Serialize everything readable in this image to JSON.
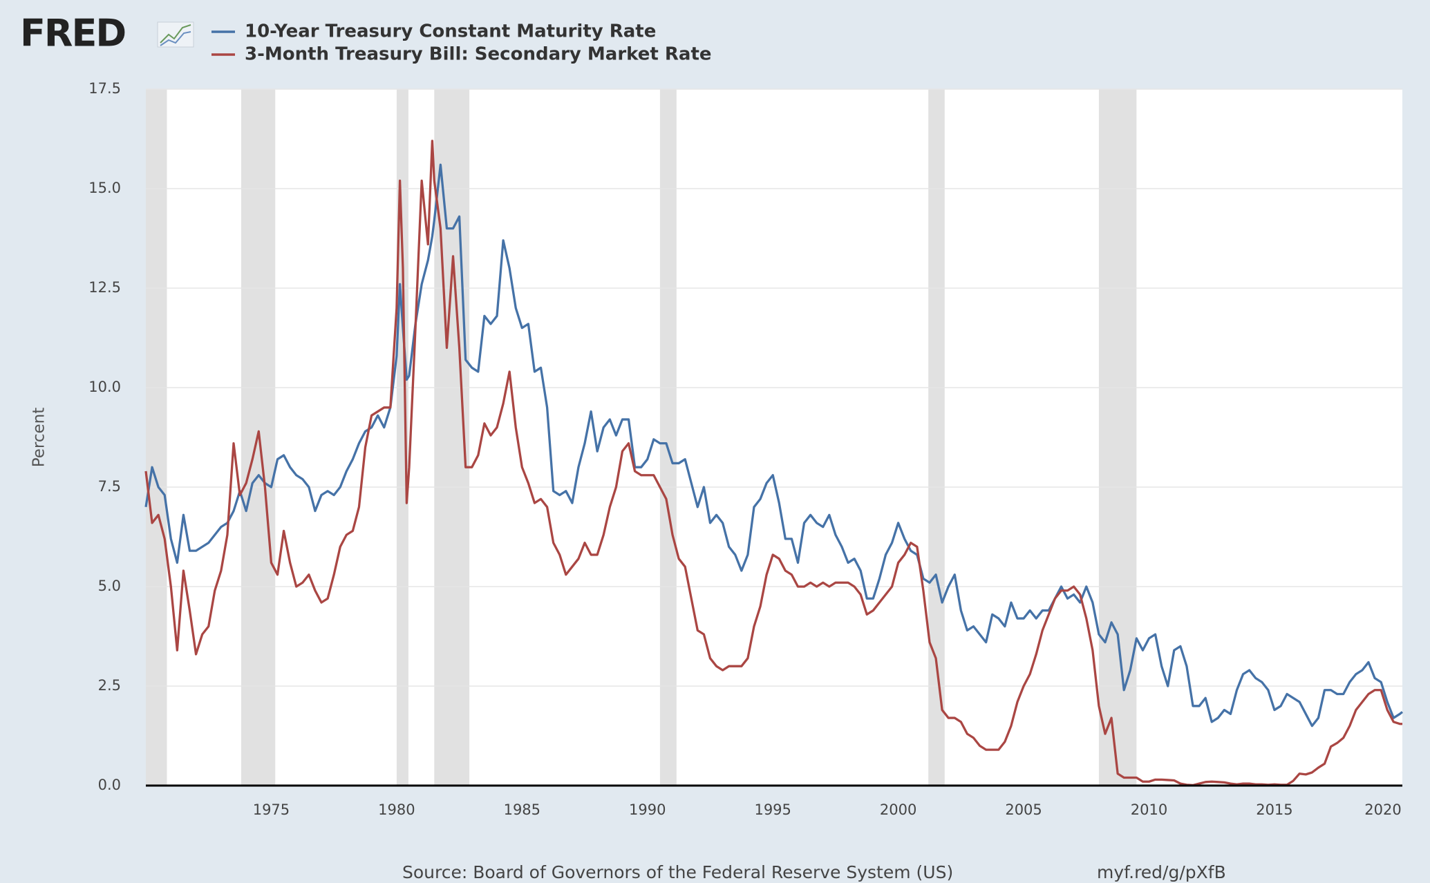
{
  "logo": "FRED",
  "source": "Source: Board of Governors of the Federal Reserve System (US)",
  "link": "myf.red/g/pXfB",
  "chart_data": {
    "type": "line",
    "ylabel": "Percent",
    "xlim": [
      1970,
      2020.1
    ],
    "xticks": [
      1975,
      1980,
      1985,
      1990,
      1995,
      2000,
      2005,
      2010,
      2015,
      2020
    ],
    "ylim": [
      0,
      17.5
    ],
    "yticks": [
      {
        "value": 0,
        "label": "0.0"
      },
      2.5,
      {
        "value": 5,
        "label": "5.0"
      },
      7.5,
      {
        "value": 10,
        "label": "10.0"
      },
      12.5,
      {
        "value": 15,
        "label": "15.0"
      },
      17.5
    ],
    "grid": true,
    "recession_color": "#e1e1e1",
    "recessions": [
      [
        1970,
        1970.84
      ],
      [
        1973.8,
        1975.16
      ],
      [
        1980,
        1980.47
      ],
      [
        1981.5,
        1982.9
      ],
      [
        1990.5,
        1991.16
      ],
      [
        2001.2,
        2001.85
      ],
      [
        2008,
        2009.5
      ]
    ],
    "x": [
      1970,
      1970.25,
      1970.5,
      1970.75,
      1971,
      1971.25,
      1971.5,
      1971.75,
      1972,
      1972.25,
      1972.5,
      1972.75,
      1973,
      1973.25,
      1973.5,
      1973.75,
      1974,
      1974.25,
      1974.5,
      1974.75,
      1975,
      1975.25,
      1975.5,
      1975.75,
      1976,
      1976.25,
      1976.5,
      1976.75,
      1977,
      1977.25,
      1977.5,
      1977.75,
      1978,
      1978.25,
      1978.5,
      1978.75,
      1979,
      1979.25,
      1979.5,
      1979.75,
      1980,
      1980.13,
      1980.25,
      1980.4,
      1980.5,
      1980.75,
      1981,
      1981.25,
      1981.42,
      1981.5,
      1981.75,
      1982,
      1982.25,
      1982.5,
      1982.75,
      1983,
      1983.25,
      1983.5,
      1983.75,
      1984,
      1984.25,
      1984.5,
      1984.75,
      1985,
      1985.25,
      1985.5,
      1985.75,
      1986,
      1986.25,
      1986.5,
      1986.75,
      1987,
      1987.25,
      1987.5,
      1987.75,
      1988,
      1988.25,
      1988.5,
      1988.75,
      1989,
      1989.25,
      1989.5,
      1989.75,
      1990,
      1990.25,
      1990.5,
      1990.75,
      1991,
      1991.25,
      1991.5,
      1991.75,
      1992,
      1992.25,
      1992.5,
      1992.75,
      1993,
      1993.25,
      1993.5,
      1993.75,
      1994,
      1994.25,
      1994.5,
      1994.75,
      1995,
      1995.25,
      1995.5,
      1995.75,
      1996,
      1996.25,
      1996.5,
      1996.75,
      1997,
      1997.25,
      1997.5,
      1997.75,
      1998,
      1998.25,
      1998.5,
      1998.75,
      1999,
      1999.25,
      1999.5,
      1999.75,
      2000,
      2000.25,
      2000.5,
      2000.75,
      2001,
      2001.25,
      2001.5,
      2001.75,
      2002,
      2002.25,
      2002.5,
      2002.75,
      2003,
      2003.25,
      2003.5,
      2003.75,
      2004,
      2004.25,
      2004.5,
      2004.75,
      2005,
      2005.25,
      2005.5,
      2005.75,
      2006,
      2006.25,
      2006.5,
      2006.75,
      2007,
      2007.25,
      2007.5,
      2007.75,
      2008,
      2008.25,
      2008.5,
      2008.75,
      2009,
      2009.25,
      2009.5,
      2009.75,
      2010,
      2010.25,
      2010.5,
      2010.75,
      2011,
      2011.25,
      2011.5,
      2011.75,
      2012,
      2012.25,
      2012.5,
      2012.75,
      2013,
      2013.25,
      2013.5,
      2013.75,
      2014,
      2014.25,
      2014.5,
      2014.75,
      2015,
      2015.25,
      2015.5,
      2015.75,
      2016,
      2016.25,
      2016.5,
      2016.75,
      2017,
      2017.25,
      2017.5,
      2017.75,
      2018,
      2018.25,
      2018.5,
      2018.75,
      2019,
      2019.25,
      2019.5,
      2019.75,
      2020,
      2020.1
    ],
    "series": [
      {
        "name": "10-Year Treasury Constant Maturity Rate",
        "color": "#4572a7",
        "values": [
          7.0,
          8.0,
          7.5,
          7.3,
          6.2,
          5.6,
          6.8,
          5.9,
          5.9,
          6.0,
          6.1,
          6.3,
          6.5,
          6.6,
          6.9,
          7.4,
          6.9,
          7.6,
          7.8,
          7.6,
          7.5,
          8.2,
          8.3,
          8.0,
          7.8,
          7.7,
          7.5,
          6.9,
          7.3,
          7.4,
          7.3,
          7.5,
          7.9,
          8.2,
          8.6,
          8.9,
          9.0,
          9.3,
          9.0,
          9.5,
          10.8,
          12.6,
          11.5,
          10.2,
          10.3,
          11.6,
          12.6,
          13.2,
          13.8,
          14.2,
          15.6,
          14.0,
          14.0,
          14.3,
          10.7,
          10.5,
          10.4,
          11.8,
          11.6,
          11.8,
          13.7,
          13.0,
          12.0,
          11.5,
          11.6,
          10.4,
          10.5,
          9.5,
          7.4,
          7.3,
          7.4,
          7.1,
          8.0,
          8.6,
          9.4,
          8.4,
          9.0,
          9.2,
          8.8,
          9.2,
          9.2,
          8.0,
          8.0,
          8.2,
          8.7,
          8.6,
          8.6,
          8.1,
          8.1,
          8.2,
          7.6,
          7.0,
          7.5,
          6.6,
          6.8,
          6.6,
          6.0,
          5.8,
          5.4,
          5.8,
          7.0,
          7.2,
          7.6,
          7.8,
          7.1,
          6.2,
          6.2,
          5.6,
          6.6,
          6.8,
          6.6,
          6.5,
          6.8,
          6.3,
          6.0,
          5.6,
          5.7,
          5.4,
          4.7,
          4.7,
          5.2,
          5.8,
          6.1,
          6.6,
          6.2,
          5.9,
          5.8,
          5.2,
          5.1,
          5.3,
          4.6,
          5.0,
          5.3,
          4.4,
          3.9,
          4.0,
          3.8,
          3.6,
          4.3,
          4.2,
          4.0,
          4.6,
          4.2,
          4.2,
          4.4,
          4.2,
          4.4,
          4.4,
          4.7,
          5.0,
          4.7,
          4.8,
          4.6,
          5.0,
          4.6,
          3.8,
          3.6,
          4.1,
          3.8,
          2.4,
          2.9,
          3.7,
          3.4,
          3.7,
          3.8,
          3.0,
          2.5,
          3.4,
          3.5,
          3.0,
          2.0,
          2.0,
          2.2,
          1.6,
          1.7,
          1.9,
          1.8,
          2.4,
          2.8,
          2.9,
          2.7,
          2.6,
          2.4,
          1.9,
          2.0,
          2.3,
          2.2,
          2.1,
          1.8,
          1.5,
          1.7,
          2.4,
          2.4,
          2.3,
          2.3,
          2.6,
          2.8,
          2.9,
          3.1,
          2.7,
          2.6,
          2.1,
          1.7,
          1.8,
          1.85
        ]
      },
      {
        "name": "3-Month Treasury Bill: Secondary Market Rate",
        "color": "#aa4643",
        "values": [
          7.9,
          6.6,
          6.8,
          6.2,
          5.0,
          3.4,
          5.4,
          4.4,
          3.3,
          3.8,
          4.0,
          4.9,
          5.4,
          6.3,
          8.6,
          7.3,
          7.6,
          8.2,
          8.9,
          7.5,
          5.6,
          5.3,
          6.4,
          5.6,
          5.0,
          5.1,
          5.3,
          4.9,
          4.6,
          4.7,
          5.3,
          6.0,
          6.3,
          6.4,
          7.0,
          8.5,
          9.3,
          9.4,
          9.5,
          9.5,
          12.0,
          15.2,
          13.0,
          7.1,
          8.0,
          11.5,
          15.2,
          13.6,
          16.2,
          15.2,
          14.0,
          11.0,
          13.3,
          11.0,
          8.0,
          8.0,
          8.3,
          9.1,
          8.8,
          9.0,
          9.6,
          10.4,
          9.0,
          8.0,
          7.6,
          7.1,
          7.2,
          7.0,
          6.1,
          5.8,
          5.3,
          5.5,
          5.7,
          6.1,
          5.8,
          5.8,
          6.3,
          7.0,
          7.5,
          8.4,
          8.6,
          7.9,
          7.8,
          7.8,
          7.8,
          7.5,
          7.2,
          6.3,
          5.7,
          5.5,
          4.7,
          3.9,
          3.8,
          3.2,
          3.0,
          2.9,
          3.0,
          3.0,
          3.0,
          3.2,
          4.0,
          4.5,
          5.3,
          5.8,
          5.7,
          5.4,
          5.3,
          5.0,
          5.0,
          5.1,
          5.0,
          5.1,
          5.0,
          5.1,
          5.1,
          5.1,
          5.0,
          4.8,
          4.3,
          4.4,
          4.6,
          4.8,
          5.0,
          5.6,
          5.8,
          6.1,
          6.0,
          4.9,
          3.6,
          3.2,
          1.9,
          1.7,
          1.7,
          1.6,
          1.3,
          1.2,
          1.0,
          0.9,
          0.9,
          0.9,
          1.1,
          1.5,
          2.1,
          2.5,
          2.8,
          3.3,
          3.9,
          4.3,
          4.7,
          4.9,
          4.9,
          5.0,
          4.8,
          4.2,
          3.4,
          2.0,
          1.3,
          1.7,
          0.3,
          0.2,
          0.2,
          0.2,
          0.1,
          0.1,
          0.15,
          0.15,
          0.14,
          0.13,
          0.05,
          0.02,
          0.01,
          0.05,
          0.09,
          0.1,
          0.09,
          0.08,
          0.05,
          0.03,
          0.05,
          0.05,
          0.03,
          0.03,
          0.02,
          0.03,
          0.02,
          0.02,
          0.12,
          0.3,
          0.28,
          0.33,
          0.45,
          0.55,
          0.98,
          1.07,
          1.2,
          1.5,
          1.9,
          2.1,
          2.3,
          2.4,
          2.4,
          1.9,
          1.6,
          1.55,
          1.55
        ]
      }
    ]
  }
}
